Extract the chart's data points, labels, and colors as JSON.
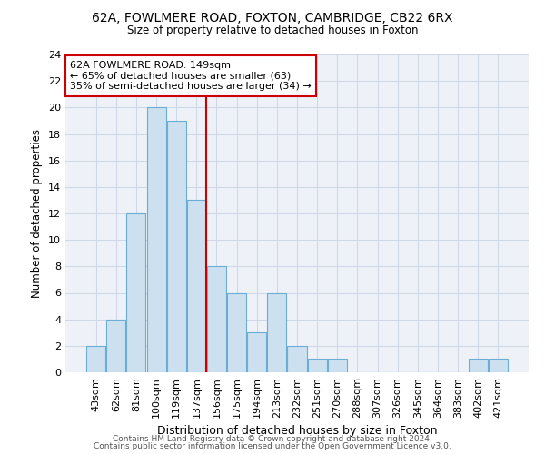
{
  "title_line1": "62A, FOWLMERE ROAD, FOXTON, CAMBRIDGE, CB22 6RX",
  "title_line2": "Size of property relative to detached houses in Foxton",
  "xlabel": "Distribution of detached houses by size in Foxton",
  "ylabel": "Number of detached properties",
  "bar_labels": [
    "43sqm",
    "62sqm",
    "81sqm",
    "100sqm",
    "119sqm",
    "137sqm",
    "156sqm",
    "175sqm",
    "194sqm",
    "213sqm",
    "232sqm",
    "251sqm",
    "270sqm",
    "288sqm",
    "307sqm",
    "326sqm",
    "345sqm",
    "364sqm",
    "383sqm",
    "402sqm",
    "421sqm"
  ],
  "bar_values": [
    2,
    4,
    12,
    20,
    19,
    13,
    8,
    6,
    3,
    6,
    2,
    1,
    1,
    0,
    0,
    0,
    0,
    0,
    0,
    1,
    1
  ],
  "bar_color": "#cce0f0",
  "bar_edgecolor": "#6aaed6",
  "vline_x": 5.5,
  "vline_color": "#cc0000",
  "annotation_line1": "62A FOWLMERE ROAD: 149sqm",
  "annotation_line2": "← 65% of detached houses are smaller (63)",
  "annotation_line3": "35% of semi-detached houses are larger (34) →",
  "annotation_box_color": "#ffffff",
  "annotation_box_edgecolor": "#cc0000",
  "ylim": [
    0,
    24
  ],
  "yticks": [
    0,
    2,
    4,
    6,
    8,
    10,
    12,
    14,
    16,
    18,
    20,
    22,
    24
  ],
  "grid_color": "#d0d8e8",
  "background_color": "#eef2f8",
  "footer_line1": "Contains HM Land Registry data © Crown copyright and database right 2024.",
  "footer_line2": "Contains public sector information licensed under the Open Government Licence v3.0."
}
